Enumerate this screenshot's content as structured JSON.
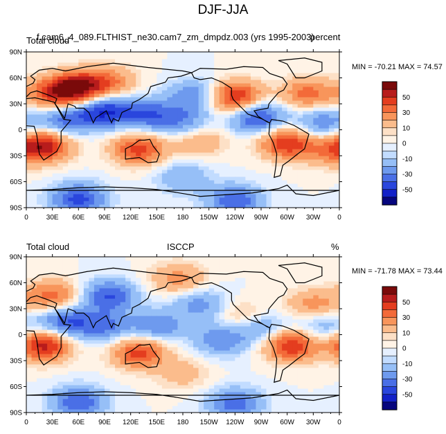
{
  "figure": {
    "title": "DJF-JJA"
  },
  "chart_data": [
    {
      "type": "heatmap",
      "variable_label": "Total cloud",
      "center_label": "f.cam6_4_089.FLTHIST_ne30.cam7_zm_dmpdz.003 (yrs 1995-2003)",
      "units_label": "percent",
      "stats": "MIN = -70.21 MAX =  74.57",
      "x_ticks": [
        "0",
        "30E",
        "60E",
        "90E",
        "120E",
        "150E",
        "180",
        "150W",
        "120W",
        "90W",
        "60W",
        "30W",
        "0"
      ],
      "y_ticks": [
        "90N",
        "60N",
        "30N",
        "0",
        "30S",
        "60S",
        "90S"
      ],
      "xlim": [
        0,
        360
      ],
      "ylim": [
        -90,
        90
      ],
      "colorbar": {
        "levels": [
          -60,
          -50,
          -40,
          -30,
          -20,
          -10,
          -5,
          0,
          5,
          10,
          20,
          30,
          40,
          50,
          60
        ],
        "tick_labels": [
          "50",
          "30",
          "10",
          "0",
          "-10",
          "-30",
          "-50"
        ],
        "colors": [
          "#7a0a0a",
          "#b81c1c",
          "#e43d1f",
          "#f36a39",
          "#f8955b",
          "#fbbc8c",
          "#fde0c6",
          "#fff3e6",
          "#e6f0ff",
          "#c2dcff",
          "#96bff7",
          "#6e9aee",
          "#4a6fe6",
          "#2a46dd",
          "#1321c8",
          "#07067e"
        ]
      },
      "anomalies": [
        {
          "lon": 35,
          "lat": 42,
          "value": 45
        },
        {
          "lon": 60,
          "lat": 50,
          "value": 50
        },
        {
          "lon": 95,
          "lat": 55,
          "value": 30
        },
        {
          "lon": 20,
          "lat": -18,
          "value": 55
        },
        {
          "lon": 130,
          "lat": -22,
          "value": 45
        },
        {
          "lon": 300,
          "lat": -15,
          "value": 50
        },
        {
          "lon": 240,
          "lat": 38,
          "value": 55
        },
        {
          "lon": 325,
          "lat": 42,
          "value": 35
        },
        {
          "lon": 90,
          "lat": 22,
          "value": -50
        },
        {
          "lon": 45,
          "lat": 12,
          "value": -35
        },
        {
          "lon": 140,
          "lat": 18,
          "value": -35
        },
        {
          "lon": 180,
          "lat": 10,
          "value": -25
        },
        {
          "lon": 195,
          "lat": 40,
          "value": -30
        },
        {
          "lon": 265,
          "lat": 15,
          "value": -45
        },
        {
          "lon": 340,
          "lat": 8,
          "value": -30
        },
        {
          "lon": 180,
          "lat": -55,
          "value": -20
        },
        {
          "lon": 60,
          "lat": -80,
          "value": -45
        },
        {
          "lon": 240,
          "lat": -82,
          "value": -40
        },
        {
          "lon": 200,
          "lat": -12,
          "value": 20
        },
        {
          "lon": 350,
          "lat": -25,
          "value": 20
        }
      ]
    },
    {
      "type": "heatmap",
      "variable_label": "Total cloud",
      "center_label": "ISCCP",
      "units_label": "%",
      "stats": "MIN = -71.78 MAX =  73.44",
      "x_ticks": [
        "0",
        "30E",
        "60E",
        "90E",
        "120E",
        "150E",
        "180",
        "150W",
        "120W",
        "90W",
        "60W",
        "30W",
        "0"
      ],
      "y_ticks": [
        "90N",
        "60N",
        "30N",
        "0",
        "30S",
        "60S",
        "90S"
      ],
      "xlim": [
        0,
        360
      ],
      "ylim": [
        -90,
        90
      ],
      "colorbar": {
        "levels": [
          -60,
          -50,
          -40,
          -30,
          -20,
          -10,
          -5,
          0,
          5,
          10,
          20,
          30,
          40,
          50,
          60
        ],
        "tick_labels": [
          "50",
          "30",
          "10",
          "0",
          "-10",
          "-30",
          "-50"
        ],
        "colors": [
          "#7a0a0a",
          "#b81c1c",
          "#e43d1f",
          "#f36a39",
          "#f8955b",
          "#fbbc8c",
          "#fde0c6",
          "#fff3e6",
          "#e6f0ff",
          "#c2dcff",
          "#96bff7",
          "#6e9aee",
          "#4a6fe6",
          "#2a46dd",
          "#1321c8",
          "#07067e"
        ]
      },
      "anomalies": [
        {
          "lon": 30,
          "lat": 45,
          "value": 35
        },
        {
          "lon": 20,
          "lat": -12,
          "value": 55
        },
        {
          "lon": 130,
          "lat": -20,
          "value": 45
        },
        {
          "lon": 305,
          "lat": -12,
          "value": 50
        },
        {
          "lon": 175,
          "lat": 65,
          "value": 25
        },
        {
          "lon": 330,
          "lat": 35,
          "value": 25
        },
        {
          "lon": 250,
          "lat": 20,
          "value": 20
        },
        {
          "lon": 95,
          "lat": 45,
          "value": -40
        },
        {
          "lon": 45,
          "lat": 15,
          "value": -40
        },
        {
          "lon": 90,
          "lat": 10,
          "value": -30
        },
        {
          "lon": 150,
          "lat": 10,
          "value": -30
        },
        {
          "lon": 200,
          "lat": 35,
          "value": -25
        },
        {
          "lon": 225,
          "lat": -5,
          "value": -30
        },
        {
          "lon": 270,
          "lat": 10,
          "value": -25
        },
        {
          "lon": 340,
          "lat": 10,
          "value": -20
        },
        {
          "lon": 60,
          "lat": -78,
          "value": -40
        },
        {
          "lon": 240,
          "lat": -80,
          "value": -35
        },
        {
          "lon": 180,
          "lat": -45,
          "value": 15
        }
      ]
    }
  ]
}
